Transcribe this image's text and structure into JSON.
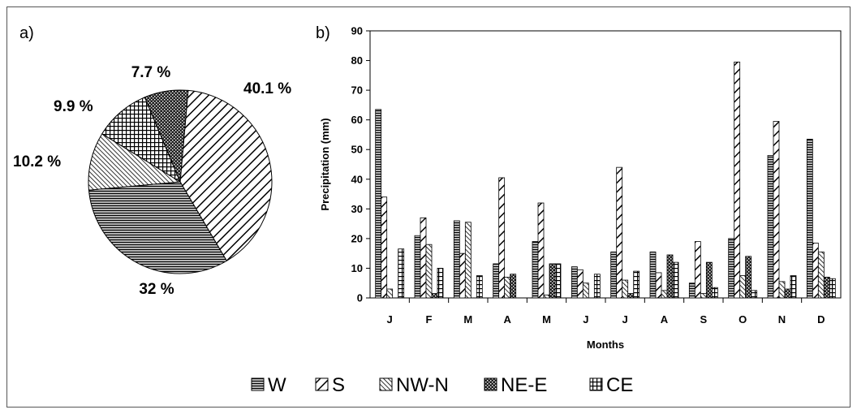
{
  "panels": {
    "a": "a)",
    "b": "b)"
  },
  "legend": [
    "W",
    "S",
    "NW-N",
    "NE-E",
    "CE"
  ],
  "chart_data": [
    {
      "type": "pie",
      "title": "",
      "labels": [
        "S",
        "W",
        "NW-N",
        "CE",
        "NE-E"
      ],
      "values": [
        40.1,
        32,
        10.2,
        9.9,
        7.7
      ],
      "value_labels": [
        "40.1 %",
        "32 %",
        "10.2 %",
        "9.9 %",
        "7.7 %"
      ]
    },
    {
      "type": "bar",
      "title": "",
      "xlabel": "Months",
      "ylabel": "Precipitation (mm)",
      "ylim": [
        0,
        90
      ],
      "yticks": [
        0,
        10,
        20,
        30,
        40,
        50,
        60,
        70,
        80,
        90
      ],
      "grid": false,
      "legend_position": "bottom",
      "categories": [
        "J",
        "F",
        "M",
        "A",
        "M",
        "J",
        "J",
        "A",
        "S",
        "O",
        "N",
        "D"
      ],
      "series": [
        {
          "name": "W",
          "values": [
            63.5,
            21,
            26,
            11.5,
            19,
            10.5,
            15.5,
            15.5,
            5,
            20,
            48,
            53.5
          ]
        },
        {
          "name": "S",
          "values": [
            34,
            27,
            15,
            40.5,
            32,
            9.5,
            44,
            8.5,
            19,
            79.5,
            59.5,
            18.5
          ]
        },
        {
          "name": "NW-N",
          "values": [
            3,
            18,
            25.5,
            7,
            1,
            5,
            6,
            2.5,
            1.5,
            7.5,
            5.5,
            15.5
          ]
        },
        {
          "name": "NE-E",
          "values": [
            0,
            1.5,
            0,
            8,
            11.5,
            0,
            1.5,
            14.5,
            12,
            14,
            3,
            7
          ]
        },
        {
          "name": "CE",
          "values": [
            16.5,
            10,
            7.5,
            0,
            11.5,
            8,
            9,
            12,
            3.5,
            2.5,
            7.5,
            6.5
          ]
        }
      ]
    }
  ]
}
